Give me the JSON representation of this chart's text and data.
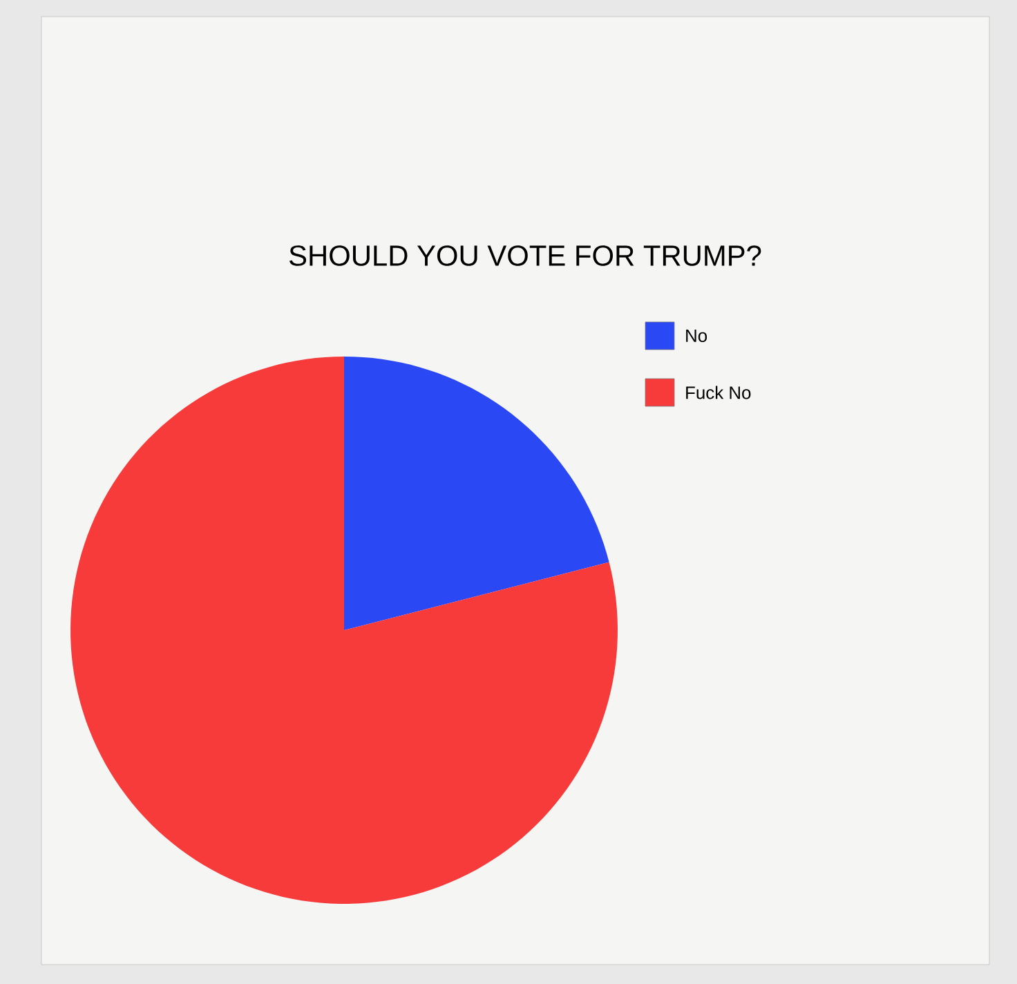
{
  "chart_data": {
    "type": "pie",
    "title": "SHOULD YOU VOTE FOR TRUMP?",
    "categories": [
      "No",
      "Fuck No"
    ],
    "values": [
      21,
      79
    ],
    "colors": [
      "#2b48f5",
      "#f73b3b"
    ],
    "legend": "top right"
  }
}
